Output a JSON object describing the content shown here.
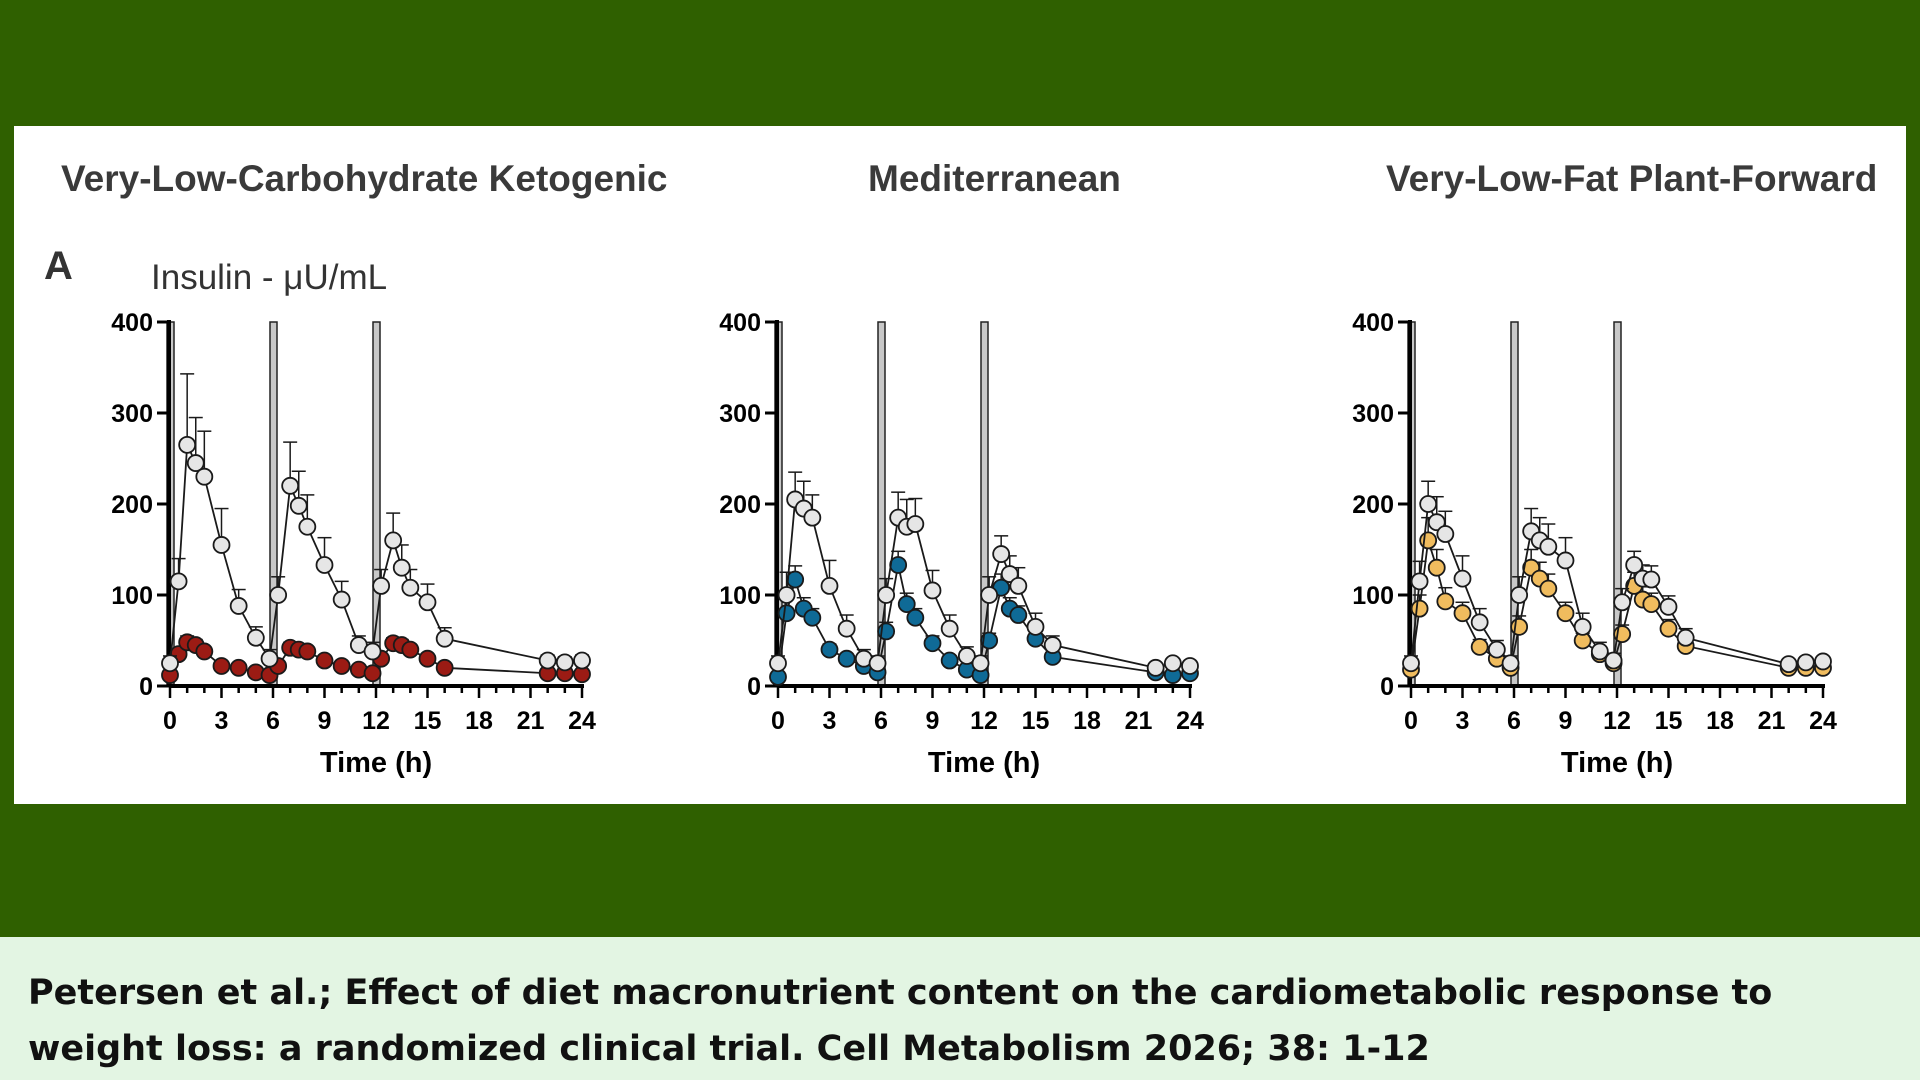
{
  "figure": {
    "panel_letter": "A",
    "y_unit_label": "Insulin - μU/mL"
  },
  "citation": "Petersen et al.; Effect of diet macronutrient content on the cardiometabolic response to weight loss: a randomized clinical trial. Cell Metabolism 2026; 38: 1-12",
  "colors": {
    "page_background": "#2f6000",
    "figure_background": "#ffffff",
    "citation_background": "#e3f5e3",
    "reference_series": "#e6e6e6",
    "ketogenic_series": "#9b1b14",
    "mediterranean_series": "#0f6a96",
    "plant_forward_series": "#f0bc5e",
    "meal_bar": "#c8c8c8"
  },
  "chart_data": [
    {
      "type": "scatter",
      "title": "Very-Low-Carbohydrate Ketogenic",
      "xlabel": "Time (h)",
      "ylabel": "",
      "xlim": [
        0,
        24
      ],
      "ylim": [
        0,
        400
      ],
      "x_ticks": [
        0,
        3,
        6,
        9,
        12,
        15,
        18,
        21,
        24
      ],
      "y_ticks": [
        0,
        100,
        200,
        300,
        400
      ],
      "meal_times": [
        0,
        6,
        12
      ],
      "series": [
        {
          "style": "reference",
          "color": "#e6e6e6",
          "x": [
            0,
            0.5,
            1,
            1.5,
            2,
            3,
            4,
            5,
            5.8,
            6.3,
            7,
            7.5,
            8,
            9,
            10,
            11,
            11.8,
            12.3,
            13,
            13.5,
            14,
            15,
            16,
            22,
            23,
            24
          ],
          "y": [
            25,
            115,
            265,
            245,
            230,
            155,
            88,
            53,
            30,
            100,
            220,
            198,
            175,
            133,
            95,
            45,
            38,
            110,
            160,
            130,
            108,
            92,
            52,
            28,
            26,
            28
          ],
          "err": [
            8,
            25,
            78,
            50,
            50,
            40,
            18,
            12,
            10,
            20,
            48,
            38,
            35,
            30,
            20,
            10,
            10,
            18,
            30,
            25,
            20,
            20,
            12,
            6,
            6,
            6
          ]
        },
        {
          "style": "diet",
          "color": "#9b1b14",
          "x": [
            0,
            0.5,
            1,
            1.5,
            2,
            3,
            4,
            5,
            5.8,
            6.3,
            7,
            7.5,
            8,
            9,
            10,
            11,
            11.8,
            12.3,
            13,
            13.5,
            14,
            15,
            16,
            22,
            23,
            24
          ],
          "y": [
            12,
            35,
            48,
            45,
            38,
            22,
            20,
            15,
            12,
            22,
            42,
            40,
            38,
            28,
            22,
            18,
            14,
            30,
            47,
            45,
            40,
            30,
            20,
            14,
            14,
            13
          ],
          "err": [
            3,
            5,
            7,
            6,
            5,
            4,
            3,
            3,
            3,
            4,
            6,
            5,
            5,
            4,
            4,
            3,
            3,
            4,
            6,
            6,
            5,
            4,
            3,
            3,
            3,
            3
          ]
        }
      ]
    },
    {
      "type": "scatter",
      "title": "Mediterranean",
      "xlabel": "Time (h)",
      "ylabel": "",
      "xlim": [
        0,
        24
      ],
      "ylim": [
        0,
        400
      ],
      "x_ticks": [
        0,
        3,
        6,
        9,
        12,
        15,
        18,
        21,
        24
      ],
      "y_ticks": [
        0,
        100,
        200,
        300,
        400
      ],
      "meal_times": [
        0,
        6,
        12
      ],
      "series": [
        {
          "style": "reference",
          "color": "#e6e6e6",
          "x": [
            0,
            0.5,
            1,
            1.5,
            2,
            3,
            4,
            5,
            5.8,
            6.3,
            7,
            7.5,
            8,
            9,
            10,
            11,
            11.8,
            12.3,
            13,
            13.5,
            14,
            15,
            16,
            22,
            23,
            24
          ],
          "y": [
            25,
            100,
            205,
            195,
            185,
            110,
            63,
            30,
            25,
            100,
            185,
            175,
            178,
            105,
            63,
            33,
            25,
            100,
            145,
            123,
            110,
            65,
            45,
            20,
            25,
            22
          ],
          "err": [
            8,
            25,
            30,
            30,
            25,
            28,
            15,
            10,
            8,
            18,
            28,
            30,
            28,
            22,
            15,
            10,
            8,
            20,
            20,
            20,
            20,
            15,
            10,
            5,
            5,
            5
          ]
        },
        {
          "style": "diet",
          "color": "#0f6a96",
          "x": [
            0,
            0.5,
            1,
            1.5,
            2,
            3,
            4,
            5,
            5.8,
            6.3,
            7,
            7.5,
            8,
            9,
            10,
            11,
            11.8,
            12.3,
            13,
            13.5,
            14,
            15,
            16,
            22,
            23,
            24
          ],
          "y": [
            10,
            80,
            117,
            85,
            75,
            40,
            30,
            22,
            15,
            60,
            133,
            90,
            75,
            47,
            28,
            18,
            12,
            50,
            108,
            85,
            78,
            52,
            32,
            15,
            12,
            14
          ],
          "err": [
            3,
            15,
            15,
            12,
            10,
            6,
            5,
            4,
            3,
            10,
            15,
            12,
            10,
            8,
            5,
            4,
            3,
            8,
            15,
            12,
            10,
            8,
            5,
            3,
            3,
            3
          ]
        }
      ]
    },
    {
      "type": "scatter",
      "title": "Very-Low-Fat Plant-Forward",
      "xlabel": "Time (h)",
      "ylabel": "",
      "xlim": [
        0,
        24
      ],
      "ylim": [
        0,
        400
      ],
      "x_ticks": [
        0,
        3,
        6,
        9,
        12,
        15,
        18,
        21,
        24
      ],
      "y_ticks": [
        0,
        100,
        200,
        300,
        400
      ],
      "meal_times": [
        0,
        6,
        12
      ],
      "series": [
        {
          "style": "reference",
          "color": "#e6e6e6",
          "x": [
            0,
            0.5,
            1,
            1.5,
            2,
            3,
            4,
            5,
            5.8,
            6.3,
            7,
            7.5,
            8,
            9,
            10,
            11,
            11.8,
            12.3,
            13,
            13.5,
            14,
            15,
            16,
            22,
            23,
            24
          ],
          "y": [
            25,
            115,
            200,
            180,
            167,
            118,
            70,
            40,
            25,
            100,
            170,
            160,
            153,
            138,
            65,
            38,
            28,
            92,
            133,
            118,
            117,
            87,
            53,
            24,
            26,
            27
          ],
          "err": [
            8,
            22,
            25,
            28,
            25,
            25,
            15,
            10,
            8,
            20,
            25,
            25,
            25,
            25,
            15,
            10,
            8,
            15,
            15,
            15,
            15,
            12,
            10,
            5,
            5,
            5
          ]
        },
        {
          "style": "diet",
          "color": "#f0bc5e",
          "x": [
            0,
            0.5,
            1,
            1.5,
            2,
            3,
            4,
            5,
            5.8,
            6.3,
            7,
            7.5,
            8,
            9,
            10,
            11,
            11.8,
            12.3,
            13,
            13.5,
            14,
            15,
            16,
            22,
            23,
            24
          ],
          "y": [
            18,
            85,
            160,
            130,
            93,
            80,
            43,
            30,
            20,
            65,
            130,
            118,
            107,
            80,
            50,
            35,
            25,
            57,
            110,
            95,
            90,
            63,
            44,
            20,
            20,
            20
          ],
          "err": [
            4,
            15,
            25,
            20,
            15,
            12,
            8,
            6,
            4,
            12,
            20,
            18,
            16,
            12,
            8,
            6,
            4,
            10,
            15,
            14,
            12,
            10,
            7,
            4,
            4,
            4
          ]
        }
      ]
    }
  ]
}
